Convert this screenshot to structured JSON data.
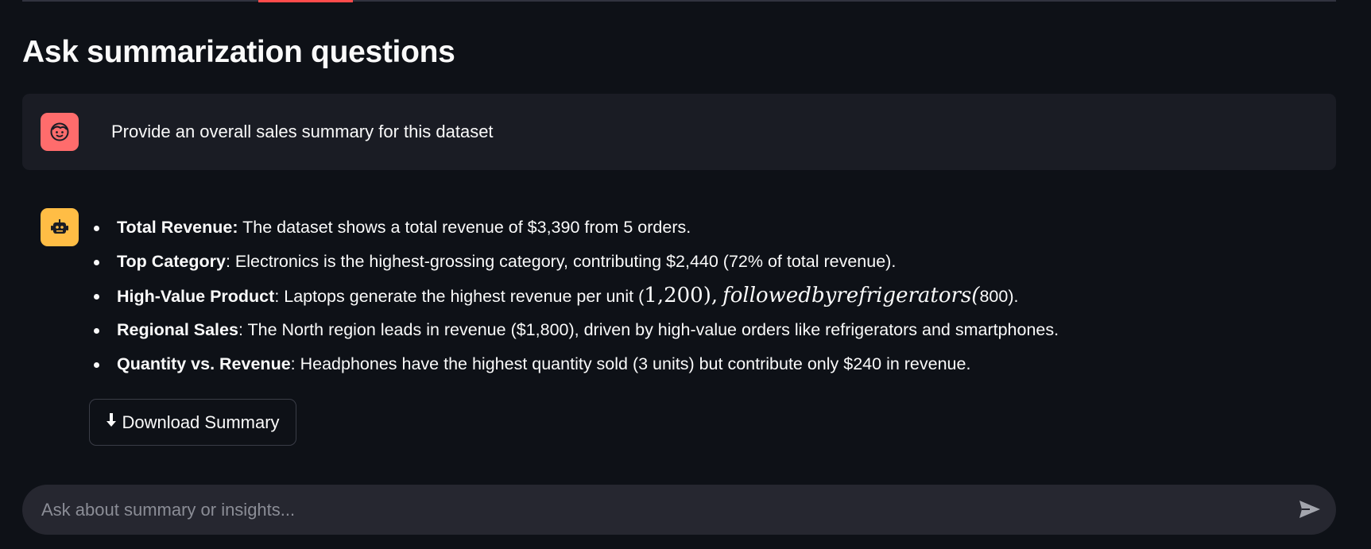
{
  "page": {
    "title": "Ask summarization questions"
  },
  "user_message": {
    "avatar_icon": "user-face-icon",
    "text": "Provide an overall sales summary for this dataset"
  },
  "assistant_message": {
    "avatar_icon": "robot-icon",
    "bullets": [
      {
        "label": "Total Revenue:",
        "text": " The dataset shows a total revenue of $3,390 from 5 orders."
      },
      {
        "label": "Top Category",
        "text": ": Electronics is the highest-grossing category, contributing $2,440 (72% of total revenue)."
      },
      {
        "label": "High-Value Product",
        "text_before": ": Laptops generate the highest revenue per unit (",
        "math_numbers": "1,200),",
        "math_italic": "followedbyrefrigerators(",
        "text_after": "800)."
      },
      {
        "label": "Regional Sales",
        "text": ": The North region leads in revenue ($1,800), driven by high-value orders like refrigerators and smartphones."
      },
      {
        "label": "Quantity vs. Revenue",
        "text": ": Headphones have the highest quantity sold (3 units) but contribute only $240 in revenue."
      }
    ],
    "download_button": {
      "icon": "arrow-down-icon",
      "label": "Download Summary"
    }
  },
  "chat_input": {
    "placeholder": "Ask about summary or insights...",
    "value": "",
    "send_icon": "send-icon"
  },
  "colors": {
    "background": "#0e1117",
    "user_bubble": "#1a1c24",
    "user_avatar": "#ff6c6c",
    "bot_avatar": "#ffbd45",
    "input_bg": "#262730",
    "accent_tab": "#ff4b4b"
  }
}
